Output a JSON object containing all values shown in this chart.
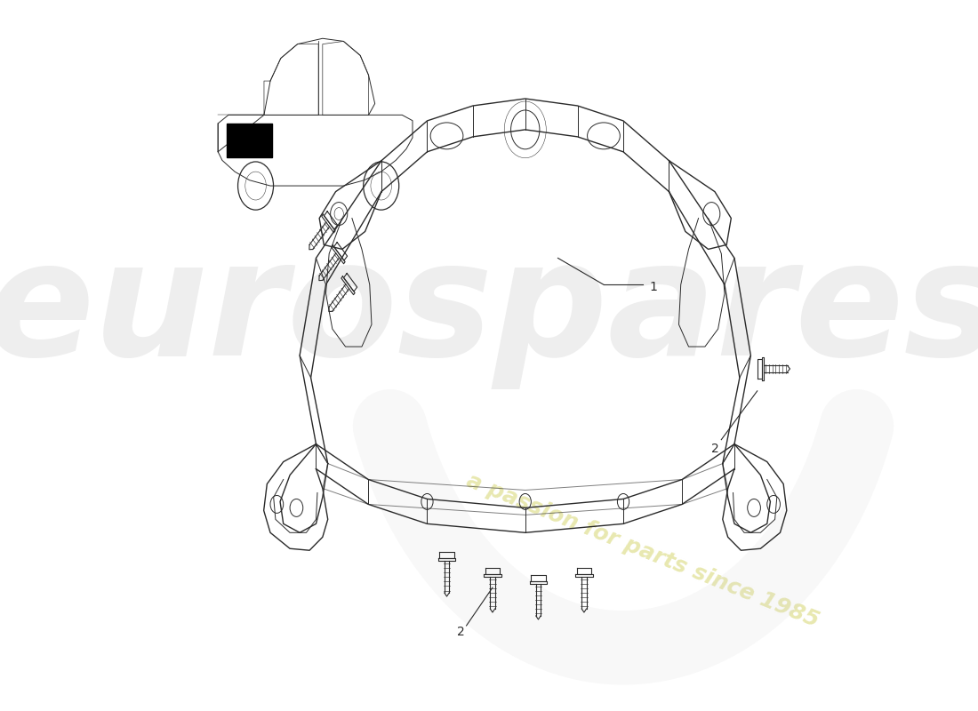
{
  "background_color": "#ffffff",
  "line_color": "#2a2a2a",
  "watermark_text1": "eurospares",
  "watermark_text2": "a passion for parts since 1985",
  "watermark_color": "#e0e0e0",
  "watermark_yellow": "#e8e8b0",
  "figsize": [
    11.0,
    8.0
  ],
  "dpi": 100
}
